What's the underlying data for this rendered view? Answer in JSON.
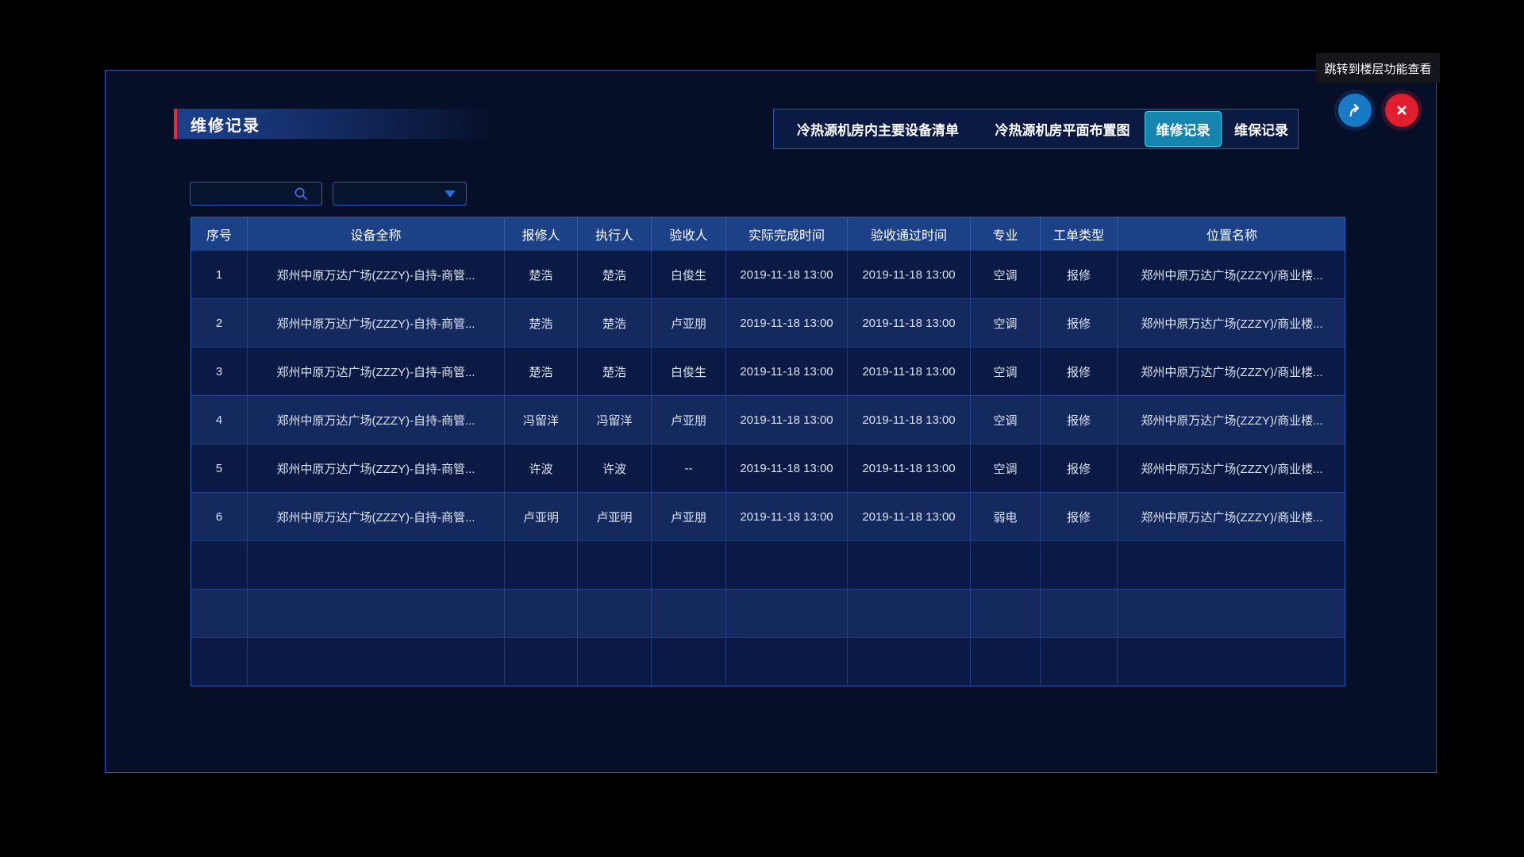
{
  "panel": {
    "title": "维修记录"
  },
  "tooltip": {
    "text": "跳转到楼层功能查看"
  },
  "tabs": {
    "active_index": 2,
    "items": [
      {
        "label": "冷热源机房内主要设备清单"
      },
      {
        "label": "冷热源机房平面布置图"
      },
      {
        "label": "维修记录"
      },
      {
        "label": "维保记录"
      }
    ]
  },
  "toolbar": {
    "search_value": "",
    "search_placeholder": "",
    "dropdown_value": ""
  },
  "icons": {
    "search": "search-icon",
    "jump": "share-arrow-icon",
    "close": "close-icon",
    "dropdown": "caret-down-icon"
  },
  "colors": {
    "accent_red": "#e5293e",
    "active_tab": "#1585b0",
    "active_tab_border": "#43cdec",
    "share_button": "#187ac4",
    "close_button": "#e11e2d",
    "header_bg": "#1c4186",
    "row_dark": "#0b1a45",
    "row_light": "#142a5f",
    "panel_border": "#2457c5"
  },
  "table": {
    "columns": [
      "序号",
      "设备全称",
      "报修人",
      "执行人",
      "验收人",
      "实际完成时间",
      "验收通过时间",
      "专业",
      "工单类型",
      "位置名称"
    ],
    "rows": [
      [
        "1",
        "郑州中原万达广场(ZZZY)-自持-商管...",
        "楚浩",
        "楚浩",
        "白俊生",
        "2019-11-18 13:00",
        "2019-11-18 13:00",
        "空调",
        "报修",
        "郑州中原万达广场(ZZZY)/商业楼..."
      ],
      [
        "2",
        "郑州中原万达广场(ZZZY)-自持-商管...",
        "楚浩",
        "楚浩",
        "卢亚朋",
        "2019-11-18 13:00",
        "2019-11-18 13:00",
        "空调",
        "报修",
        "郑州中原万达广场(ZZZY)/商业楼..."
      ],
      [
        "3",
        "郑州中原万达广场(ZZZY)-自持-商管...",
        "楚浩",
        "楚浩",
        "白俊生",
        "2019-11-18 13:00",
        "2019-11-18 13:00",
        "空调",
        "报修",
        "郑州中原万达广场(ZZZY)/商业楼..."
      ],
      [
        "4",
        "郑州中原万达广场(ZZZY)-自持-商管...",
        "冯留洋",
        "冯留洋",
        "卢亚朋",
        "2019-11-18 13:00",
        "2019-11-18 13:00",
        "空调",
        "报修",
        "郑州中原万达广场(ZZZY)/商业楼..."
      ],
      [
        "5",
        "郑州中原万达广场(ZZZY)-自持-商管...",
        "许波",
        "许波",
        "--",
        "2019-11-18 13:00",
        "2019-11-18 13:00",
        "空调",
        "报修",
        "郑州中原万达广场(ZZZY)/商业楼..."
      ],
      [
        "6",
        "郑州中原万达广场(ZZZY)-自持-商管...",
        "卢亚明",
        "卢亚明",
        "卢亚朋",
        "2019-11-18 13:00",
        "2019-11-18 13:00",
        "弱电",
        "报修",
        "郑州中原万达广场(ZZZY)/商业楼..."
      ]
    ],
    "empty_row_count": 3
  }
}
